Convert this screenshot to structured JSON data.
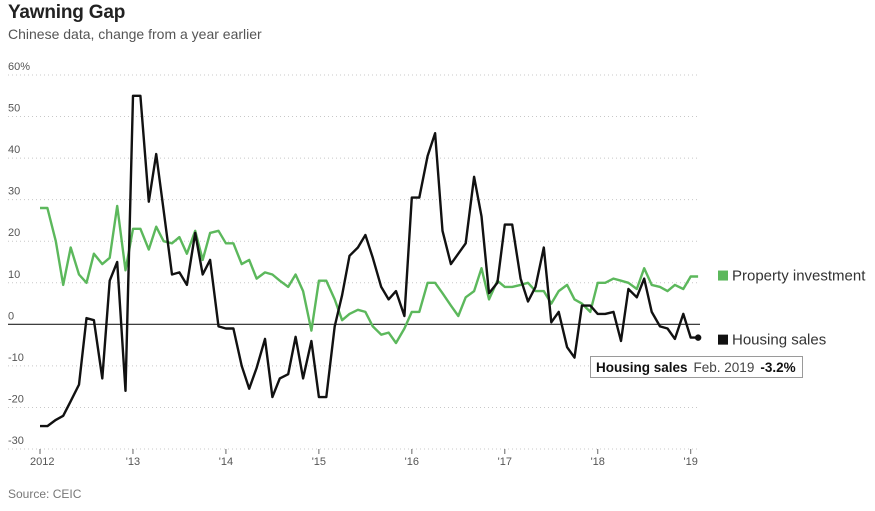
{
  "title": "Yawning Gap",
  "subtitle": "Chinese data, change from a year earlier",
  "source": "Source: CEIC",
  "tooltip": {
    "series": "Housing sales",
    "date": "Feb. 2019",
    "value": "-3.2%"
  },
  "colors": {
    "property": "#5cb85c",
    "housing": "#111111",
    "zero_line": "#222222",
    "grid": "#c8c8c8"
  },
  "chart_data": {
    "type": "line",
    "title": "Yawning Gap",
    "subtitle": "Chinese data, change from a year earlier",
    "ylim": [
      -30,
      60
    ],
    "y_ticks": [
      -30,
      -20,
      -10,
      0,
      10,
      20,
      30,
      40,
      50,
      60
    ],
    "y_tick_labels": [
      "-30",
      "-20",
      "-10",
      "0",
      "10",
      "20",
      "30",
      "40",
      "50",
      "60%"
    ],
    "x_ticks": [
      {
        "t": 2012.0,
        "label": "2012"
      },
      {
        "t": 2013.0,
        "label": "'13"
      },
      {
        "t": 2014.0,
        "label": "'14"
      },
      {
        "t": 2015.0,
        "label": "'15"
      },
      {
        "t": 2016.0,
        "label": "'16"
      },
      {
        "t": 2017.0,
        "label": "'17"
      },
      {
        "t": 2018.0,
        "label": "'18"
      },
      {
        "t": 2019.0,
        "label": "'19"
      }
    ],
    "xlim": [
      2012.0,
      2019.1
    ],
    "series": [
      {
        "name": "Property investment",
        "color": "#5cb85c",
        "points": [
          [
            2012.0,
            28
          ],
          [
            2012.08,
            28
          ],
          [
            2012.17,
            20
          ],
          [
            2012.25,
            9.5
          ],
          [
            2012.33,
            18.5
          ],
          [
            2012.42,
            12
          ],
          [
            2012.5,
            10
          ],
          [
            2012.58,
            17
          ],
          [
            2012.67,
            14.5
          ],
          [
            2012.75,
            16
          ],
          [
            2012.83,
            28.5
          ],
          [
            2012.92,
            13
          ],
          [
            2013.0,
            23
          ],
          [
            2013.08,
            23
          ],
          [
            2013.17,
            18
          ],
          [
            2013.25,
            23.5
          ],
          [
            2013.33,
            20
          ],
          [
            2013.42,
            19.5
          ],
          [
            2013.5,
            21
          ],
          [
            2013.58,
            17
          ],
          [
            2013.67,
            22.5
          ],
          [
            2013.75,
            15.5
          ],
          [
            2013.83,
            22
          ],
          [
            2013.92,
            22.5
          ],
          [
            2014.0,
            19.5
          ],
          [
            2014.08,
            19.5
          ],
          [
            2014.17,
            14.5
          ],
          [
            2014.25,
            15.5
          ],
          [
            2014.33,
            11
          ],
          [
            2014.42,
            12.5
          ],
          [
            2014.5,
            12
          ],
          [
            2014.58,
            10.5
          ],
          [
            2014.67,
            9
          ],
          [
            2014.75,
            12
          ],
          [
            2014.83,
            8
          ],
          [
            2014.92,
            -1.5
          ],
          [
            2015.0,
            10.5
          ],
          [
            2015.08,
            10.5
          ],
          [
            2015.17,
            6
          ],
          [
            2015.25,
            1
          ],
          [
            2015.33,
            2.5
          ],
          [
            2015.42,
            3.5
          ],
          [
            2015.5,
            3
          ],
          [
            2015.58,
            -0.5
          ],
          [
            2015.67,
            -2.5
          ],
          [
            2015.75,
            -2
          ],
          [
            2015.83,
            -4.5
          ],
          [
            2015.92,
            -1
          ],
          [
            2016.0,
            3
          ],
          [
            2016.08,
            3
          ],
          [
            2016.17,
            10
          ],
          [
            2016.25,
            10
          ],
          [
            2016.33,
            7.5
          ],
          [
            2016.42,
            4.5
          ],
          [
            2016.5,
            2
          ],
          [
            2016.58,
            6.5
          ],
          [
            2016.67,
            8
          ],
          [
            2016.75,
            13.5
          ],
          [
            2016.83,
            6
          ],
          [
            2016.92,
            10.5
          ],
          [
            2017.0,
            9
          ],
          [
            2017.08,
            9
          ],
          [
            2017.17,
            9.5
          ],
          [
            2017.25,
            10
          ],
          [
            2017.33,
            8
          ],
          [
            2017.42,
            8
          ],
          [
            2017.5,
            5
          ],
          [
            2017.58,
            8
          ],
          [
            2017.67,
            9.5
          ],
          [
            2017.75,
            6
          ],
          [
            2017.83,
            5
          ],
          [
            2017.92,
            3
          ],
          [
            2018.0,
            10
          ],
          [
            2018.08,
            10
          ],
          [
            2018.17,
            11
          ],
          [
            2018.25,
            10.5
          ],
          [
            2018.33,
            10
          ],
          [
            2018.42,
            8.5
          ],
          [
            2018.5,
            13.5
          ],
          [
            2018.58,
            9.5
          ],
          [
            2018.67,
            9
          ],
          [
            2018.75,
            8
          ],
          [
            2018.83,
            9.5
          ],
          [
            2018.92,
            8.5
          ],
          [
            2019.0,
            11.5
          ],
          [
            2019.08,
            11.5
          ]
        ]
      },
      {
        "name": "Housing sales",
        "color": "#111111",
        "points": [
          [
            2012.0,
            -24.5
          ],
          [
            2012.08,
            -24.5
          ],
          [
            2012.17,
            -23
          ],
          [
            2012.25,
            -22
          ],
          [
            2012.33,
            -18.5
          ],
          [
            2012.42,
            -14.5
          ],
          [
            2012.5,
            1.5
          ],
          [
            2012.58,
            1
          ],
          [
            2012.67,
            -13
          ],
          [
            2012.75,
            10.5
          ],
          [
            2012.83,
            15
          ],
          [
            2012.92,
            -16
          ],
          [
            2013.0,
            55
          ],
          [
            2013.08,
            55
          ],
          [
            2013.17,
            29.5
          ],
          [
            2013.25,
            41
          ],
          [
            2013.33,
            27.5
          ],
          [
            2013.42,
            12
          ],
          [
            2013.5,
            12.5
          ],
          [
            2013.58,
            9.5
          ],
          [
            2013.67,
            22
          ],
          [
            2013.75,
            12
          ],
          [
            2013.83,
            15.5
          ],
          [
            2013.92,
            -0.5
          ],
          [
            2014.0,
            -1
          ],
          [
            2014.08,
            -1
          ],
          [
            2014.17,
            -10
          ],
          [
            2014.25,
            -15.5
          ],
          [
            2014.33,
            -10.5
          ],
          [
            2014.42,
            -3.5
          ],
          [
            2014.5,
            -17.5
          ],
          [
            2014.58,
            -13
          ],
          [
            2014.67,
            -12
          ],
          [
            2014.75,
            -3
          ],
          [
            2014.83,
            -13
          ],
          [
            2014.92,
            -4
          ],
          [
            2015.0,
            -17.5
          ],
          [
            2015.08,
            -17.5
          ],
          [
            2015.17,
            -0.5
          ],
          [
            2015.25,
            7
          ],
          [
            2015.33,
            16.5
          ],
          [
            2015.42,
            18.5
          ],
          [
            2015.5,
            21.5
          ],
          [
            2015.58,
            16
          ],
          [
            2015.67,
            9
          ],
          [
            2015.75,
            6
          ],
          [
            2015.83,
            8
          ],
          [
            2015.92,
            2
          ],
          [
            2016.0,
            30.5
          ],
          [
            2016.08,
            30.5
          ],
          [
            2016.17,
            40.5
          ],
          [
            2016.25,
            46
          ],
          [
            2016.33,
            22.5
          ],
          [
            2016.42,
            14.5
          ],
          [
            2016.5,
            17
          ],
          [
            2016.58,
            19.5
          ],
          [
            2016.67,
            35.5
          ],
          [
            2016.75,
            26
          ],
          [
            2016.83,
            7.5
          ],
          [
            2016.92,
            10
          ],
          [
            2017.0,
            24
          ],
          [
            2017.08,
            24
          ],
          [
            2017.17,
            11
          ],
          [
            2017.25,
            5.5
          ],
          [
            2017.33,
            9
          ],
          [
            2017.42,
            18.5
          ],
          [
            2017.5,
            0.5
          ],
          [
            2017.58,
            3
          ],
          [
            2017.67,
            -5.5
          ],
          [
            2017.75,
            -8
          ],
          [
            2017.83,
            4.5
          ],
          [
            2017.92,
            4.5
          ],
          [
            2018.0,
            2.5
          ],
          [
            2018.08,
            2.5
          ],
          [
            2018.17,
            3
          ],
          [
            2018.25,
            -4
          ],
          [
            2018.33,
            8.5
          ],
          [
            2018.42,
            6.5
          ],
          [
            2018.5,
            11
          ],
          [
            2018.58,
            3
          ],
          [
            2018.67,
            -0.5
          ],
          [
            2018.75,
            -1
          ],
          [
            2018.83,
            -3.5
          ],
          [
            2018.92,
            2.5
          ],
          [
            2019.0,
            -3.2
          ],
          [
            2019.08,
            -3.2
          ]
        ]
      }
    ],
    "legend": [
      {
        "name": "Property investment",
        "color": "#5cb85c"
      },
      {
        "name": "Housing sales",
        "color": "#111111"
      }
    ],
    "highlight": {
      "series": "Housing sales",
      "t": 2019.08,
      "value": -3.2
    }
  }
}
